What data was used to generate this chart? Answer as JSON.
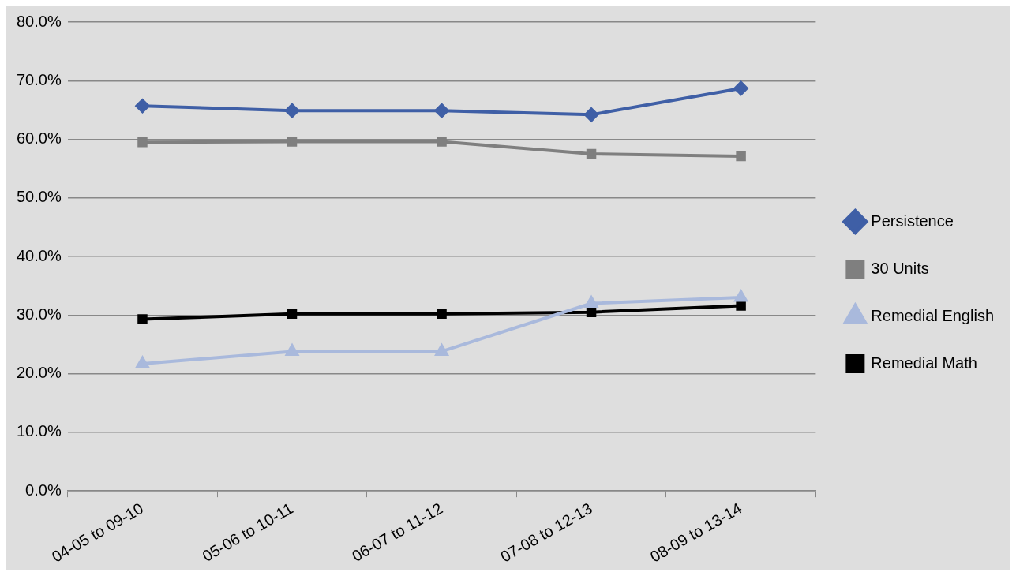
{
  "chart_data": {
    "type": "line",
    "categories": [
      "04-05 to 09-10",
      "05-06 to 10-11",
      "06-07 to 11-12",
      "07-08 to 12-13",
      "08-09 to 13-14"
    ],
    "series": [
      {
        "name": "Persistence",
        "color": "#3f5fa6",
        "marker": "diamond",
        "values": [
          65.7,
          64.9,
          64.9,
          64.2,
          68.7
        ]
      },
      {
        "name": "30 Units",
        "color": "#7f7f7f",
        "marker": "square",
        "values": [
          59.5,
          59.6,
          59.6,
          57.5,
          57.1
        ]
      },
      {
        "name": "Remedial English",
        "color": "#a9b9dc",
        "marker": "triangle",
        "values": [
          21.7,
          23.8,
          23.8,
          32.0,
          33.0
        ]
      },
      {
        "name": "Remedial Math",
        "color": "#000000",
        "marker": "square",
        "values": [
          29.3,
          30.2,
          30.2,
          30.5,
          31.6
        ]
      }
    ],
    "ylim": [
      0,
      80
    ],
    "yticks": [
      {
        "value": 0,
        "label": "0.0%"
      },
      {
        "value": 10,
        "label": "10.0%"
      },
      {
        "value": 20,
        "label": "20.0%"
      },
      {
        "value": 30,
        "label": "30.0%"
      },
      {
        "value": 40,
        "label": "40.0%"
      },
      {
        "value": 50,
        "label": "50.0%"
      },
      {
        "value": 60,
        "label": "60.0%"
      },
      {
        "value": 70,
        "label": "70.0%"
      },
      {
        "value": 80,
        "label": "80.0%"
      }
    ],
    "grid": "y",
    "legend": "right",
    "line_style": "solid"
  }
}
